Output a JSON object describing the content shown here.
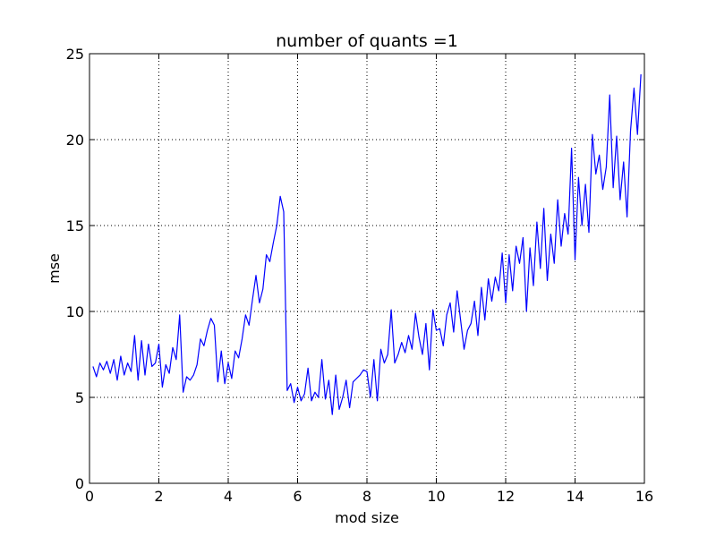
{
  "chart_data": {
    "type": "line",
    "title": "number of quants =1",
    "xlabel": "mod size",
    "ylabel": "mse",
    "xlim": [
      0,
      16
    ],
    "ylim": [
      0,
      25
    ],
    "xticks": [
      0,
      2,
      4,
      6,
      8,
      10,
      12,
      14,
      16
    ],
    "yticks": [
      0,
      5,
      10,
      15,
      20,
      25
    ],
    "grid": true,
    "legend": "none",
    "colors": {
      "series": "#0000ff",
      "grid": "#000000",
      "axes": "#000000"
    },
    "series": [
      {
        "x": [
          0.1,
          0.2,
          0.3,
          0.4,
          0.5,
          0.6,
          0.7,
          0.8,
          0.9,
          1.0,
          1.1,
          1.2,
          1.3,
          1.4,
          1.5,
          1.6,
          1.7,
          1.8,
          1.9,
          2.0,
          2.1,
          2.2,
          2.3,
          2.4,
          2.5,
          2.6,
          2.7,
          2.8,
          2.9,
          3.0,
          3.1,
          3.2,
          3.3,
          3.4,
          3.5,
          3.6,
          3.7,
          3.8,
          3.9,
          4.0,
          4.1,
          4.2,
          4.3,
          4.4,
          4.5,
          4.6,
          4.7,
          4.8,
          4.9,
          5.0,
          5.1,
          5.2,
          5.3,
          5.4,
          5.5,
          5.6,
          5.7,
          5.8,
          5.9,
          6.0,
          6.1,
          6.2,
          6.3,
          6.4,
          6.5,
          6.6,
          6.7,
          6.8,
          6.9,
          7.0,
          7.1,
          7.2,
          7.3,
          7.4,
          7.5,
          7.6,
          7.7,
          7.8,
          7.9,
          8.0,
          8.1,
          8.2,
          8.3,
          8.4,
          8.5,
          8.6,
          8.7,
          8.8,
          8.9,
          9.0,
          9.1,
          9.2,
          9.3,
          9.4,
          9.5,
          9.6,
          9.7,
          9.8,
          9.9,
          10.0,
          10.1,
          10.2,
          10.3,
          10.4,
          10.5,
          10.6,
          10.7,
          10.8,
          10.9,
          11.0,
          11.1,
          11.2,
          11.3,
          11.4,
          11.5,
          11.6,
          11.7,
          11.8,
          11.9,
          12.0,
          12.1,
          12.2,
          12.3,
          12.4,
          12.5,
          12.6,
          12.7,
          12.8,
          12.9,
          13.0,
          13.1,
          13.2,
          13.3,
          13.4,
          13.5,
          13.6,
          13.7,
          13.8,
          13.9,
          14.0,
          14.1,
          14.2,
          14.3,
          14.4,
          14.5,
          14.6,
          14.7,
          14.8,
          14.9,
          15.0,
          15.1,
          15.2,
          15.3,
          15.4,
          15.5,
          15.6,
          15.7,
          15.8,
          15.9
        ],
        "values": [
          6.8,
          6.2,
          7.0,
          6.6,
          7.1,
          6.4,
          7.2,
          6.0,
          7.4,
          6.3,
          7.0,
          6.5,
          8.6,
          6.0,
          8.3,
          6.3,
          8.1,
          6.8,
          7.0,
          8.1,
          5.6,
          6.9,
          6.4,
          7.9,
          7.2,
          9.8,
          5.3,
          6.2,
          6.0,
          6.3,
          6.9,
          8.4,
          8.0,
          8.9,
          9.6,
          9.2,
          5.9,
          7.7,
          5.8,
          7.0,
          6.1,
          7.7,
          7.3,
          8.4,
          9.8,
          9.2,
          10.7,
          12.1,
          10.5,
          11.3,
          13.3,
          12.9,
          14.0,
          15.0,
          16.7,
          15.8,
          5.4,
          5.8,
          4.7,
          5.6,
          4.8,
          5.2,
          6.7,
          4.8,
          5.3,
          5.0,
          7.2,
          4.9,
          6.0,
          4.0,
          6.3,
          4.3,
          5.0,
          6.0,
          4.4,
          5.9,
          6.1,
          6.3,
          6.6,
          6.5,
          5.0,
          7.2,
          4.8,
          7.8,
          7.0,
          7.5,
          10.1,
          7.0,
          7.5,
          8.2,
          7.6,
          8.6,
          7.8,
          9.9,
          8.5,
          7.5,
          9.3,
          6.6,
          10.1,
          8.9,
          9.0,
          8.0,
          9.8,
          10.5,
          8.8,
          11.2,
          9.5,
          7.8,
          8.9,
          9.3,
          10.6,
          8.6,
          11.4,
          9.5,
          11.9,
          10.6,
          12.0,
          11.2,
          13.4,
          10.5,
          13.3,
          11.2,
          13.8,
          12.8,
          14.3,
          10.0,
          13.7,
          11.5,
          15.2,
          12.5,
          16.0,
          11.8,
          14.5,
          12.8,
          16.5,
          13.8,
          15.7,
          14.5,
          19.5,
          13.0,
          17.8,
          15.0,
          17.4,
          14.6,
          20.3,
          18.0,
          19.1,
          17.1,
          18.4,
          22.6,
          17.2,
          20.2,
          16.5,
          18.7,
          15.5,
          20.5,
          23.0,
          20.3,
          23.8
        ]
      }
    ]
  }
}
